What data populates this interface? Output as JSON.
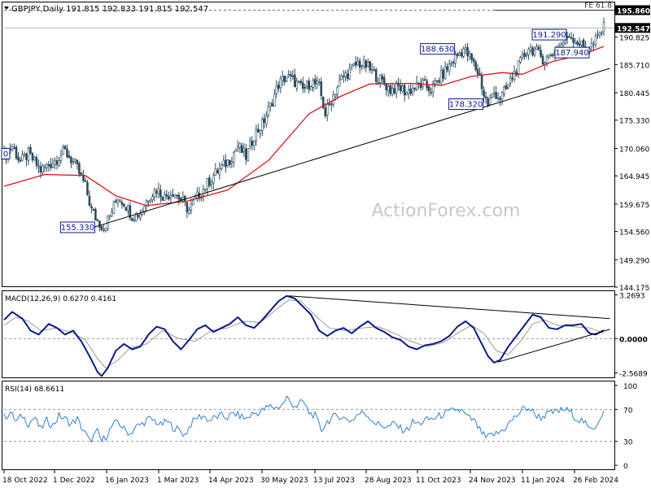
{
  "header": {
    "symbol_line": "GBPJPY,Daily  191.815 192.833 191.815 192.547"
  },
  "watermark": "ActionForex.com",
  "colors": {
    "candle": "#2a4b5f",
    "sma": "#d9151c",
    "trendline": "#000000",
    "macd": "#0b1a8c",
    "macd_signal": "#9a9a9a",
    "rsi": "#2f7fcf",
    "tag_border": "#0b1a8c",
    "tag_text": "#0b1a8c",
    "grid_dash": "#9a9a9a"
  },
  "chart_data": [
    {
      "type": "candlestick",
      "title": "GBPJPY,Daily",
      "ohlc_header": {
        "open": 191.815,
        "high": 192.833,
        "low": 191.815,
        "close": 192.547
      },
      "x_ticks": [
        "18 Oct 2022",
        "1 Dec 2022",
        "16 Jan 2023",
        "1 Mar 2023",
        "14 Apr 2023",
        "30 May 2023",
        "13 Jul 2023",
        "28 Aug 2023",
        "11 Oct 2023",
        "24 Nov 2023",
        "11 Jan 2024",
        "26 Feb 2024"
      ],
      "y_ticks": [
        144.175,
        149.29,
        154.56,
        159.675,
        164.945,
        170.06,
        175.33,
        180.445,
        185.71,
        190.825,
        195.86
      ],
      "ylim": [
        144.175,
        197.3
      ],
      "price_path": [
        [
          0,
          168.5
        ],
        [
          4,
          170.5
        ],
        [
          8,
          167.5
        ],
        [
          12,
          169.0
        ],
        [
          18,
          166.0
        ],
        [
          24,
          167.5
        ],
        [
          30,
          169.5
        ],
        [
          35,
          167.0
        ],
        [
          40,
          163.0
        ],
        [
          43,
          158.5
        ],
        [
          46,
          156.5
        ],
        [
          49,
          155.33
        ],
        [
          52,
          157.5
        ],
        [
          56,
          161.0
        ],
        [
          59,
          160.0
        ],
        [
          63,
          157.5
        ],
        [
          67,
          158.0
        ],
        [
          71,
          161.0
        ],
        [
          75,
          162.5
        ],
        [
          79,
          161.0
        ],
        [
          83,
          162.0
        ],
        [
          87,
          160.5
        ],
        [
          91,
          158.5
        ],
        [
          95,
          161.0
        ],
        [
          99,
          163.0
        ],
        [
          103,
          165.0
        ],
        [
          107,
          166.5
        ],
        [
          111,
          168.0
        ],
        [
          115,
          170.5
        ],
        [
          119,
          168.5
        ],
        [
          123,
          172.5
        ],
        [
          127,
          174.5
        ],
        [
          131,
          178.0
        ],
        [
          135,
          182.0
        ],
        [
          139,
          183.5
        ],
        [
          143,
          182.5
        ],
        [
          147,
          181.0
        ],
        [
          151,
          182.5
        ],
        [
          155,
          181.5
        ],
        [
          158,
          176.5
        ],
        [
          162,
          180.0
        ],
        [
          166,
          183.0
        ],
        [
          170,
          184.5
        ],
        [
          174,
          186.0
        ],
        [
          178,
          185.5
        ],
        [
          182,
          184.0
        ],
        [
          186,
          182.5
        ],
        [
          190,
          181.0
        ],
        [
          194,
          181.5
        ],
        [
          198,
          180.5
        ],
        [
          202,
          181.5
        ],
        [
          206,
          182.0
        ],
        [
          210,
          181.0
        ],
        [
          214,
          183.0
        ],
        [
          218,
          185.0
        ],
        [
          222,
          187.0
        ],
        [
          226,
          188.63
        ],
        [
          230,
          186.5
        ],
        [
          234,
          183.5
        ],
        [
          236,
          180.0
        ],
        [
          238,
          178.32
        ],
        [
          241,
          180.5
        ],
        [
          244,
          179.5
        ],
        [
          247,
          181.0
        ],
        [
          250,
          183.5
        ],
        [
          254,
          186.0
        ],
        [
          258,
          189.0
        ],
        [
          262,
          188.0
        ],
        [
          266,
          186.5
        ],
        [
          270,
          187.94
        ],
        [
          274,
          189.5
        ],
        [
          278,
          191.29
        ],
        [
          282,
          190.0
        ],
        [
          286,
          188.5
        ],
        [
          290,
          189.5
        ],
        [
          293,
          191.5
        ],
        [
          295,
          192.547
        ]
      ],
      "n_bars": 296,
      "sma_path": [
        [
          0,
          163.0
        ],
        [
          20,
          165.2
        ],
        [
          40,
          165.0
        ],
        [
          55,
          161.2
        ],
        [
          70,
          159.4
        ],
        [
          90,
          160.2
        ],
        [
          110,
          162.3
        ],
        [
          130,
          167.8
        ],
        [
          150,
          176.5
        ],
        [
          165,
          179.7
        ],
        [
          180,
          182.1
        ],
        [
          200,
          182.2
        ],
        [
          215,
          181.8
        ],
        [
          230,
          183.5
        ],
        [
          245,
          184.2
        ],
        [
          255,
          183.9
        ],
        [
          270,
          186.3
        ],
        [
          285,
          187.6
        ],
        [
          295,
          189.1
        ]
      ],
      "trendlines": [
        {
          "from": [
            44,
            155.33
          ],
          "to": [
            298,
            185.0
          ]
        }
      ],
      "horizontal_lines": [
        {
          "value": 195.86,
          "label": "FE 61.8",
          "style": "dashed"
        }
      ],
      "price_labels": [
        {
          "text": "155.330",
          "bar": 45,
          "value": 155.33,
          "side": "left"
        },
        {
          "text": "188.630",
          "bar": 222,
          "value": 188.63,
          "side": "left"
        },
        {
          "text": "178.320",
          "bar": 236,
          "value": 178.32,
          "side": "left"
        },
        {
          "text": "191.290",
          "bar": 277,
          "value": 191.29,
          "side": "left"
        },
        {
          "text": "187.940",
          "bar": 271,
          "value": 187.94,
          "side": "right"
        }
      ],
      "edge_label_left": "0",
      "axis_markers": [
        {
          "text": "195.860",
          "value": 195.86
        },
        {
          "text": "192.547",
          "value": 192.547
        }
      ]
    },
    {
      "type": "line",
      "title": "MACD(12,26,9) 0.6270 0.4161",
      "y_ticks": [
        3.2693,
        0.0,
        -2.5689
      ],
      "ylim": [
        -2.9,
        3.55
      ],
      "zero_line": 0.0,
      "macd_path": [
        [
          0,
          1.4
        ],
        [
          4,
          2.0
        ],
        [
          9,
          1.5
        ],
        [
          13,
          0.6
        ],
        [
          17,
          0.3
        ],
        [
          22,
          1.1
        ],
        [
          26,
          0.8
        ],
        [
          30,
          0.3
        ],
        [
          34,
          0.6
        ],
        [
          38,
          -0.2
        ],
        [
          42,
          -1.3
        ],
        [
          46,
          -2.5
        ],
        [
          48,
          -2.8
        ],
        [
          51,
          -2.2
        ],
        [
          55,
          -0.9
        ],
        [
          59,
          -0.4
        ],
        [
          63,
          -0.8
        ],
        [
          67,
          -0.6
        ],
        [
          71,
          0.3
        ],
        [
          75,
          0.9
        ],
        [
          79,
          0.7
        ],
        [
          83,
          -0.2
        ],
        [
          87,
          -0.8
        ],
        [
          91,
          -0.1
        ],
        [
          95,
          0.7
        ],
        [
          99,
          1.0
        ],
        [
          103,
          0.5
        ],
        [
          107,
          0.8
        ],
        [
          111,
          1.1
        ],
        [
          115,
          1.6
        ],
        [
          119,
          1.0
        ],
        [
          123,
          0.8
        ],
        [
          127,
          1.4
        ],
        [
          131,
          2.1
        ],
        [
          135,
          2.8
        ],
        [
          139,
          3.2
        ],
        [
          143,
          3.0
        ],
        [
          147,
          2.4
        ],
        [
          151,
          1.8
        ],
        [
          155,
          0.6
        ],
        [
          159,
          0.2
        ],
        [
          163,
          0.6
        ],
        [
          167,
          0.8
        ],
        [
          171,
          0.4
        ],
        [
          175,
          0.9
        ],
        [
          179,
          1.3
        ],
        [
          183,
          0.8
        ],
        [
          187,
          0.5
        ],
        [
          191,
          0.1
        ],
        [
          195,
          -0.1
        ],
        [
          199,
          -0.6
        ],
        [
          203,
          -0.8
        ],
        [
          207,
          -0.5
        ],
        [
          211,
          -0.4
        ],
        [
          215,
          -0.2
        ],
        [
          219,
          0.2
        ],
        [
          223,
          0.9
        ],
        [
          227,
          1.3
        ],
        [
          231,
          0.8
        ],
        [
          235,
          -0.4
        ],
        [
          238,
          -1.3
        ],
        [
          241,
          -1.8
        ],
        [
          244,
          -1.6
        ],
        [
          248,
          -0.6
        ],
        [
          252,
          0.2
        ],
        [
          256,
          1.0
        ],
        [
          260,
          1.8
        ],
        [
          264,
          1.6
        ],
        [
          268,
          0.8
        ],
        [
          272,
          0.7
        ],
        [
          276,
          1.0
        ],
        [
          280,
          1.0
        ],
        [
          284,
          1.1
        ],
        [
          288,
          0.4
        ],
        [
          291,
          0.3
        ],
        [
          295,
          0.627
        ]
      ],
      "signal_path": [
        [
          0,
          1.0
        ],
        [
          6,
          1.6
        ],
        [
          12,
          1.3
        ],
        [
          18,
          0.6
        ],
        [
          26,
          0.8
        ],
        [
          34,
          0.4
        ],
        [
          40,
          -0.1
        ],
        [
          46,
          -1.5
        ],
        [
          50,
          -2.2
        ],
        [
          56,
          -1.6
        ],
        [
          62,
          -0.7
        ],
        [
          70,
          -0.4
        ],
        [
          78,
          0.6
        ],
        [
          86,
          0.0
        ],
        [
          94,
          -0.2
        ],
        [
          102,
          0.6
        ],
        [
          110,
          0.8
        ],
        [
          118,
          1.3
        ],
        [
          126,
          1.2
        ],
        [
          134,
          2.2
        ],
        [
          140,
          2.9
        ],
        [
          146,
          2.8
        ],
        [
          154,
          1.6
        ],
        [
          160,
          0.8
        ],
        [
          168,
          0.6
        ],
        [
          176,
          0.8
        ],
        [
          184,
          0.9
        ],
        [
          192,
          0.4
        ],
        [
          200,
          -0.2
        ],
        [
          208,
          -0.6
        ],
        [
          216,
          -0.3
        ],
        [
          224,
          0.5
        ],
        [
          230,
          1.0
        ],
        [
          236,
          0.4
        ],
        [
          242,
          -0.9
        ],
        [
          248,
          -1.2
        ],
        [
          254,
          -0.2
        ],
        [
          260,
          1.1
        ],
        [
          266,
          1.4
        ],
        [
          272,
          1.0
        ],
        [
          280,
          0.9
        ],
        [
          288,
          0.8
        ],
        [
          295,
          0.416
        ]
      ],
      "trendlines": [
        {
          "from": [
            140,
            3.2
          ],
          "to": [
            298,
            1.5
          ]
        },
        {
          "from": [
            243,
            -1.75
          ],
          "to": [
            298,
            0.7
          ]
        }
      ]
    },
    {
      "type": "line",
      "title": "RSI(14) 68.6611",
      "y_ticks": [
        100,
        70,
        30,
        0
      ],
      "ylim": [
        -5,
        105
      ],
      "dashed_levels": [
        70,
        30
      ],
      "rsi_path": [
        [
          0,
          60
        ],
        [
          3,
          66
        ],
        [
          6,
          55
        ],
        [
          9,
          62
        ],
        [
          12,
          52
        ],
        [
          15,
          60
        ],
        [
          18,
          45
        ],
        [
          21,
          56
        ],
        [
          24,
          50
        ],
        [
          27,
          62
        ],
        [
          30,
          58
        ],
        [
          33,
          52
        ],
        [
          36,
          58
        ],
        [
          38,
          48
        ],
        [
          40,
          40
        ],
        [
          42,
          30
        ],
        [
          44,
          36
        ],
        [
          46,
          42
        ],
        [
          48,
          30
        ],
        [
          50,
          36
        ],
        [
          53,
          48
        ],
        [
          56,
          55
        ],
        [
          59,
          45
        ],
        [
          62,
          40
        ],
        [
          65,
          48
        ],
        [
          68,
          52
        ],
        [
          71,
          58
        ],
        [
          74,
          56
        ],
        [
          77,
          50
        ],
        [
          80,
          55
        ],
        [
          83,
          48
        ],
        [
          86,
          44
        ],
        [
          89,
          38
        ],
        [
          92,
          52
        ],
        [
          95,
          60
        ],
        [
          98,
          62
        ],
        [
          101,
          56
        ],
        [
          104,
          60
        ],
        [
          107,
          62
        ],
        [
          110,
          60
        ],
        [
          113,
          65
        ],
        [
          116,
          62
        ],
        [
          119,
          58
        ],
        [
          122,
          64
        ],
        [
          125,
          66
        ],
        [
          128,
          70
        ],
        [
          131,
          74
        ],
        [
          134,
          72
        ],
        [
          137,
          76
        ],
        [
          139,
          85
        ],
        [
          141,
          78
        ],
        [
          144,
          74
        ],
        [
          147,
          80
        ],
        [
          150,
          66
        ],
        [
          153,
          62
        ],
        [
          156,
          44
        ],
        [
          159,
          55
        ],
        [
          162,
          60
        ],
        [
          165,
          62
        ],
        [
          168,
          58
        ],
        [
          171,
          56
        ],
        [
          174,
          64
        ],
        [
          177,
          66
        ],
        [
          180,
          60
        ],
        [
          183,
          52
        ],
        [
          186,
          50
        ],
        [
          189,
          48
        ],
        [
          192,
          52
        ],
        [
          195,
          46
        ],
        [
          198,
          44
        ],
        [
          201,
          54
        ],
        [
          204,
          52
        ],
        [
          207,
          56
        ],
        [
          210,
          58
        ],
        [
          213,
          60
        ],
        [
          216,
          64
        ],
        [
          219,
          66
        ],
        [
          222,
          70
        ],
        [
          225,
          68
        ],
        [
          228,
          60
        ],
        [
          231,
          56
        ],
        [
          234,
          44
        ],
        [
          237,
          34
        ],
        [
          240,
          38
        ],
        [
          243,
          40
        ],
        [
          246,
          46
        ],
        [
          249,
          54
        ],
        [
          252,
          62
        ],
        [
          255,
          70
        ],
        [
          258,
          72
        ],
        [
          261,
          64
        ],
        [
          264,
          60
        ],
        [
          267,
          64
        ],
        [
          270,
          66
        ],
        [
          273,
          68
        ],
        [
          276,
          70
        ],
        [
          279,
          66
        ],
        [
          282,
          58
        ],
        [
          285,
          55
        ],
        [
          288,
          44
        ],
        [
          291,
          50
        ],
        [
          295,
          68.66
        ]
      ]
    }
  ]
}
